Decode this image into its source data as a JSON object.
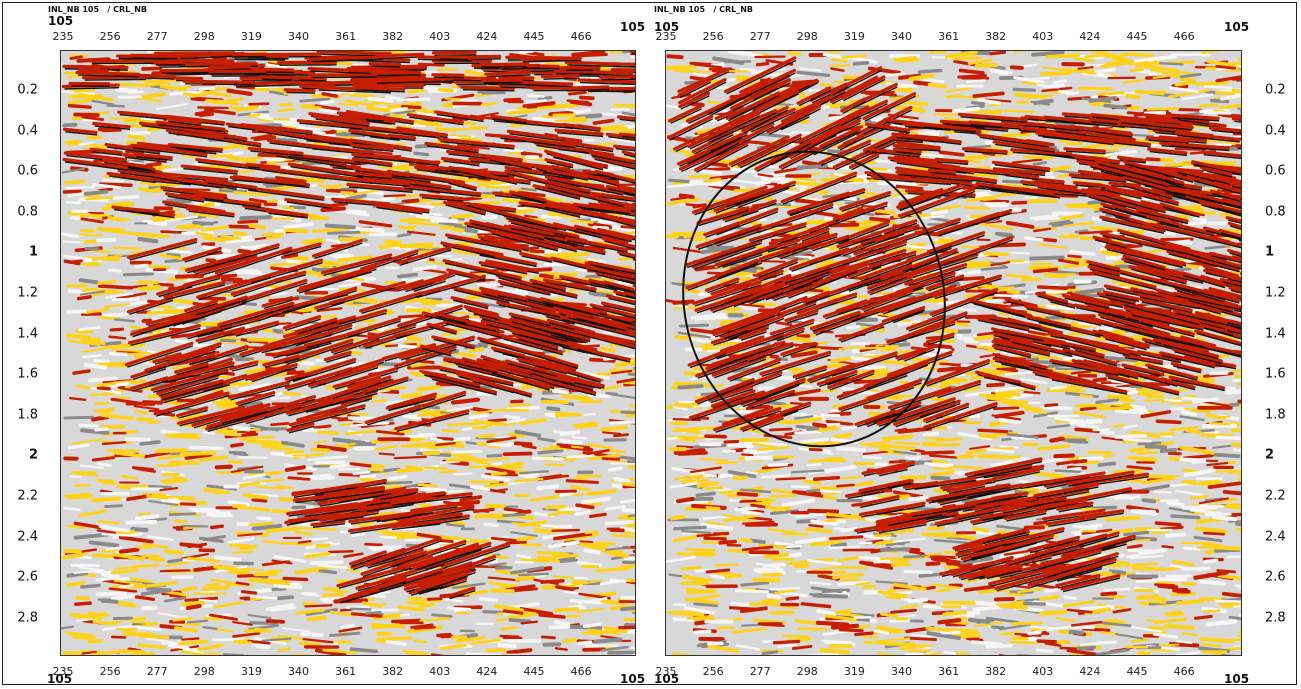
{
  "left_panel": {
    "header": "INL_NB 105   / CRL_NB",
    "corner_top_left": "105",
    "corner_top_right": "105",
    "corner_bottom_left": "105",
    "corner_bottom_right": "105",
    "x_ticks": [
      "235",
      "256",
      "277",
      "298",
      "319",
      "340",
      "361",
      "382",
      "403",
      "424",
      "445",
      "466"
    ]
  },
  "right_panel": {
    "header": "INL_NB 105   / CRL_NB",
    "corner_top_left": "105",
    "corner_top_right": "105",
    "corner_bottom_left": "105",
    "corner_bottom_right": "105",
    "x_ticks": [
      "235",
      "256",
      "277",
      "298",
      "319",
      "340",
      "361",
      "382",
      "403",
      "424",
      "445",
      "466"
    ]
  },
  "y_ticks": [
    "0.2",
    "0.4",
    "0.6",
    "0.8",
    "1",
    "1.2",
    "1.4",
    "1.6",
    "1.8",
    "2",
    "2.2",
    "2.4",
    "2.6",
    "2.8"
  ],
  "bold_y_ticks": [
    "1",
    "2"
  ],
  "colors": {
    "peak": "#c81e00",
    "trough": "#ffd21a",
    "background": "#d8d8d8",
    "strong": "#111111"
  }
}
